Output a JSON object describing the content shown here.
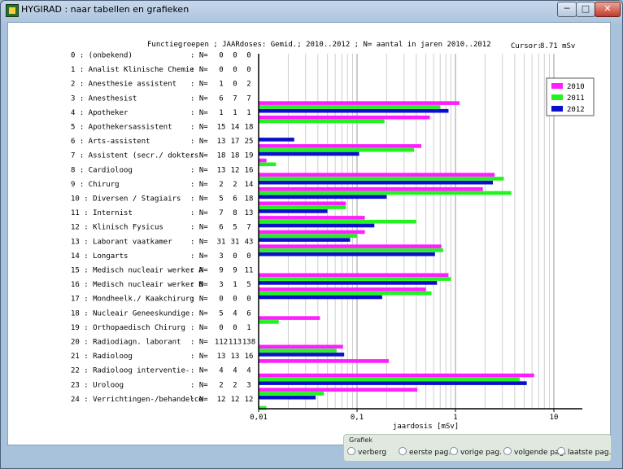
{
  "window": {
    "title": "HYGIRAD : naar tabellen en grafieken",
    "minimize": "─",
    "maximize": "□",
    "close": "✕"
  },
  "header": {
    "text": "Functiegroepen ; JAARdoses: Gemid.;  2010..2012  ;  N= aantal in jaren 2010..2012",
    "cursor_label": "Cursor:",
    "cursor_value": "8.71 mSv"
  },
  "colors": {
    "2010": "#ff1eff",
    "2011": "#22f222",
    "2012": "#0a10c8"
  },
  "chart_data": {
    "type": "bar",
    "orientation": "horizontal",
    "xscale": "log",
    "xlim": [
      0.01,
      20
    ],
    "xticks": [
      "0,01",
      "0,1",
      "1",
      "10"
    ],
    "xlabel": "jaardosis [mSv]",
    "legend": [
      "2010",
      "2011",
      "2012"
    ],
    "legend_position": "top-right",
    "grid": true,
    "rows": [
      {
        "label": "0 : (onbekend)",
        "n": [
          "0",
          "0",
          "0"
        ],
        "values": [
          null,
          null,
          null
        ]
      },
      {
        "label": "1 : Analist Klinische Chemie",
        "n": [
          "0",
          "0",
          "0"
        ],
        "values": [
          null,
          null,
          null
        ]
      },
      {
        "label": "2 : Anesthesie assistent",
        "n": [
          "1",
          "0",
          "2"
        ],
        "values": [
          null,
          null,
          null
        ]
      },
      {
        "label": "3 : Anesthesist",
        "n": [
          "6",
          "7",
          "7"
        ],
        "values": [
          1.1,
          0.7,
          0.85
        ]
      },
      {
        "label": "4 : Apotheker",
        "n": [
          "1",
          "1",
          "1"
        ],
        "values": [
          0.55,
          0.19,
          null
        ]
      },
      {
        "label": "5 : Apothekersassistent",
        "n": [
          "15",
          "14",
          "18"
        ],
        "values": [
          null,
          null,
          0.023
        ]
      },
      {
        "label": "6 : Arts-assistent",
        "n": [
          "13",
          "17",
          "25"
        ],
        "values": [
          0.45,
          0.38,
          0.105
        ]
      },
      {
        "label": "7 : Assistent (secr./ dokters",
        "n": [
          "18",
          "18",
          "19"
        ],
        "values": [
          0.012,
          0.015,
          null
        ]
      },
      {
        "label": "8 : Cardioloog",
        "n": [
          "13",
          "12",
          "16"
        ],
        "values": [
          2.5,
          3.1,
          2.4
        ]
      },
      {
        "label": "9 : Chirurg",
        "n": [
          "2",
          "2",
          "14"
        ],
        "values": [
          1.9,
          3.7,
          0.2
        ]
      },
      {
        "label": "10 : Diversen / Stagiairs",
        "n": [
          "5",
          "6",
          "18"
        ],
        "values": [
          0.077,
          0.077,
          0.05
        ]
      },
      {
        "label": "11 : Internist",
        "n": [
          "7",
          "8",
          "13"
        ],
        "values": [
          0.12,
          0.4,
          0.15
        ]
      },
      {
        "label": "12 : Klinisch Fysicus",
        "n": [
          "6",
          "5",
          "7"
        ],
        "values": [
          0.12,
          0.1,
          0.085
        ]
      },
      {
        "label": "13 : Laborant vaatkamer",
        "n": [
          "31",
          "31",
          "43"
        ],
        "values": [
          0.72,
          0.75,
          0.62
        ]
      },
      {
        "label": "14 : Longarts",
        "n": [
          "3",
          "0",
          "0"
        ],
        "values": [
          null,
          null,
          null
        ]
      },
      {
        "label": "15 : Medisch nucleair werker A",
        "n": [
          "9",
          "9",
          "11"
        ],
        "values": [
          0.85,
          0.9,
          0.65
        ]
      },
      {
        "label": "16 : Medisch nucleair werker B",
        "n": [
          "3",
          "1",
          "5"
        ],
        "values": [
          0.5,
          0.57,
          0.18
        ]
      },
      {
        "label": "17 : Mondheelk./ Kaakchirurg",
        "n": [
          "0",
          "0",
          "0"
        ],
        "values": [
          null,
          null,
          null
        ]
      },
      {
        "label": "18 : Nucleair Geneeskundige",
        "n": [
          "5",
          "4",
          "6"
        ],
        "values": [
          0.042,
          0.016,
          null
        ]
      },
      {
        "label": "19 : Orthopaedisch Chirurg",
        "n": [
          "0",
          "0",
          "1"
        ],
        "values": [
          null,
          null,
          null
        ]
      },
      {
        "label": "20 : Radiodiagn. laborant",
        "n": [
          "112",
          "113",
          "138"
        ],
        "values": [
          0.072,
          0.062,
          0.074
        ]
      },
      {
        "label": "21 : Radioloog",
        "n": [
          "13",
          "13",
          "16"
        ],
        "values": [
          0.21,
          null,
          null
        ]
      },
      {
        "label": "22 : Radioloog interventie-",
        "n": [
          "4",
          "4",
          "4"
        ],
        "values": [
          6.3,
          4.5,
          5.3
        ]
      },
      {
        "label": "23 : Uroloog",
        "n": [
          "2",
          "2",
          "3"
        ],
        "values": [
          0.41,
          0.046,
          0.038
        ]
      },
      {
        "label": "24 : Verrichtingen-/behandelce",
        "n": [
          "12",
          "12",
          "12"
        ],
        "values": [
          null,
          0.012,
          null
        ]
      }
    ]
  },
  "n_label": ": N=",
  "panel": {
    "title": "Grafiek",
    "options": [
      "verberg",
      "eerste pag.",
      "vorige pag.",
      "volgende pag.",
      "laatste pag."
    ]
  }
}
